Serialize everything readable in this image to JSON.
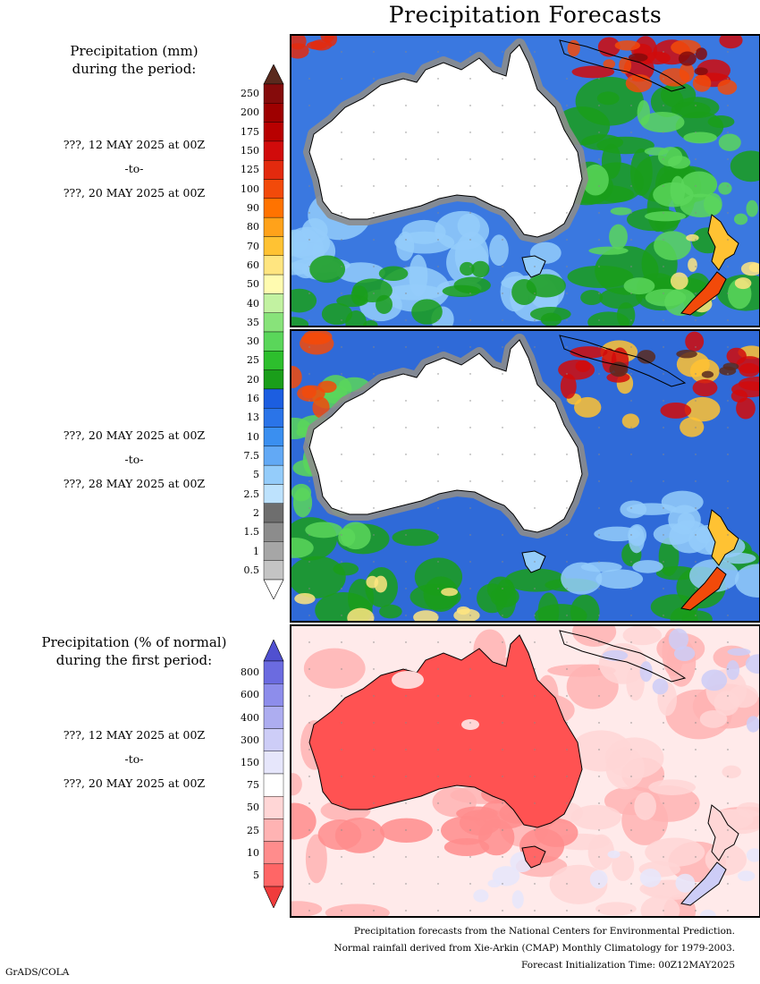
{
  "title": "Precipitation Forecasts",
  "legend_mm": {
    "heading_line1": "Precipitation (mm)",
    "heading_line2": "during the period:",
    "ticks": [
      "250",
      "200",
      "175",
      "150",
      "125",
      "100",
      "90",
      "80",
      "70",
      "60",
      "50",
      "40",
      "35",
      "30",
      "25",
      "20",
      "16",
      "13",
      "10",
      "7.5",
      "5",
      "2.5",
      "2",
      "1.5",
      "1",
      "0.5"
    ],
    "colors": [
      "#850b0b",
      "#9e0000",
      "#b80000",
      "#d10b0b",
      "#e32a0e",
      "#f24a0a",
      "#ff7300",
      "#ffa21a",
      "#ffc233",
      "#ffe580",
      "#fffbb0",
      "#c2f2a1",
      "#88e37a",
      "#5ad65a",
      "#2dbf2d",
      "#1a9e1a",
      "#1c5ee0",
      "#2a74e8",
      "#3a8ff0",
      "#62a9f5",
      "#94ccfa",
      "#bde2fd",
      "#6e6e6e",
      "#8c8c8c",
      "#a6a6a6",
      "#c4c4c4"
    ],
    "top_arrow_color": "#5a2a1e",
    "bottom_arrow_color": "#ffffff"
  },
  "legend_pct": {
    "heading_line1": "Precipitation (% of normal)",
    "heading_line2": "during the first period:",
    "ticks": [
      "800",
      "600",
      "400",
      "300",
      "150",
      "75",
      "50",
      "25",
      "10",
      "5"
    ],
    "colors": [
      "#6b6be0",
      "#8d8deb",
      "#adadf0",
      "#cdcdf7",
      "#e6e6fb",
      "#ffffff",
      "#ffd6d6",
      "#ffb3b3",
      "#ff8c8c",
      "#ff6666"
    ],
    "top_arrow_color": "#5050d0",
    "bottom_arrow_color": "#f03c3c"
  },
  "periods": [
    {
      "from": "???, 12 MAY 2025 at 00Z",
      "sep": "-to-",
      "to": "???, 20 MAY 2025 at 00Z"
    },
    {
      "from": "???, 20 MAY 2025 at 00Z",
      "sep": "-to-",
      "to": "???, 28 MAY 2025 at 00Z"
    },
    {
      "from": "???, 12 MAY 2025 at 00Z",
      "sep": "-to-",
      "to": "???, 20 MAY 2025 at 00Z"
    }
  ],
  "footer": {
    "line1": "Precipitation forecasts from the National Centers for Environmental Prediction.",
    "line2": "Normal rainfall derived from Xie-Arkin (CMAP) Monthly Climatology for 1979-2003.",
    "line3": "Forecast Initialization Time: 00Z12MAY2025"
  },
  "credit": "GrADS/COLA"
}
